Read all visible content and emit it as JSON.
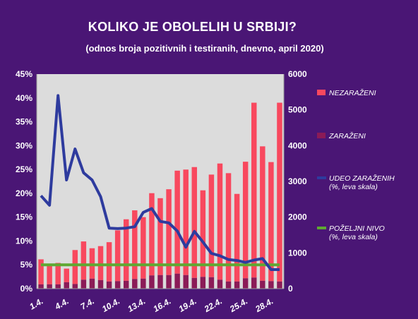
{
  "chart_data": {
    "type": "bar",
    "title": "KOLIKO JE OBOLELIH U SRBIJI?",
    "subtitle": "(odnos broja pozitivnih i testiranih, dnevno, april 2020)",
    "x": [
      "1.4.",
      "2.4.",
      "3.4.",
      "4.4.",
      "5.4.",
      "6.4.",
      "7.4.",
      "8.4.",
      "9.4.",
      "10.4.",
      "11.4.",
      "12.4.",
      "13.4.",
      "14.4.",
      "15.4.",
      "16.4.",
      "17.4.",
      "18.4.",
      "19.4.",
      "20.4.",
      "21.4.",
      "22.4.",
      "23.4.",
      "24.4.",
      "25.4.",
      "26.4.",
      "27.4.",
      "28.4.",
      "29.4."
    ],
    "x_tick_labels": [
      "1.4.",
      "4.4.",
      "7.4.",
      "10.4.",
      "13.4.",
      "16.4.",
      "19.4.",
      "22.4.",
      "25.4.",
      "28.4."
    ],
    "y_left": {
      "min": 0,
      "max": 0.45,
      "step": 0.05,
      "ticks": [
        "0%",
        "5%",
        "10%",
        "15%",
        "20%",
        "25%",
        "30%",
        "35%",
        "40%",
        "45%"
      ]
    },
    "y_right": {
      "min": 0,
      "max": 6000,
      "step": 1000,
      "ticks": [
        "0",
        "1000",
        "2000",
        "3000",
        "4000",
        "5000",
        "6000"
      ]
    },
    "series": [
      {
        "name": "NEZARAŽENI",
        "type": "stacked-bar",
        "axis": "right",
        "color": "#f8485e",
        "values": [
          700,
          520,
          600,
          380,
          950,
          1070,
          850,
          950,
          1100,
          1420,
          1720,
          1920,
          1720,
          2300,
          2150,
          2400,
          2880,
          2950,
          3100,
          2420,
          2870,
          3250,
          3030,
          2450,
          3260,
          4890,
          3760,
          3330,
          5000
        ]
      },
      {
        "name": "ZARAŽENI",
        "type": "stacked-bar",
        "axis": "right",
        "color": "#8b1b57",
        "values": [
          120,
          120,
          120,
          180,
          130,
          250,
          280,
          240,
          200,
          210,
          220,
          270,
          280,
          370,
          380,
          380,
          420,
          380,
          300,
          330,
          320,
          250,
          200,
          200,
          290,
          310,
          220,
          210,
          200
        ]
      },
      {
        "name": "UDEO ZARAŽENIH\n(%, leva skala)",
        "type": "line",
        "axis": "left",
        "color": "#2e3b9e",
        "values": [
          0.195,
          0.175,
          0.405,
          0.228,
          0.293,
          0.243,
          0.228,
          0.193,
          0.127,
          0.126,
          0.127,
          0.13,
          0.16,
          0.168,
          0.141,
          0.138,
          0.121,
          0.087,
          0.12,
          0.098,
          0.074,
          0.069,
          0.061,
          0.059,
          0.055,
          0.06,
          0.063,
          0.04,
          0.04
        ]
      },
      {
        "name": "POŽELJNI NIVO\n(%, leva skala)",
        "type": "line",
        "axis": "left",
        "color": "#5fa832",
        "values": [
          0.05,
          0.05,
          0.05,
          0.05,
          0.05,
          0.05,
          0.05,
          0.05,
          0.05,
          0.05,
          0.05,
          0.05,
          0.05,
          0.05,
          0.05,
          0.05,
          0.05,
          0.05,
          0.05,
          0.05,
          0.05,
          0.05,
          0.05,
          0.05,
          0.05,
          0.05,
          0.05,
          0.05,
          0.05
        ]
      }
    ],
    "plot_background": "#dcdcdc",
    "grid": false,
    "legend_position": "right"
  }
}
